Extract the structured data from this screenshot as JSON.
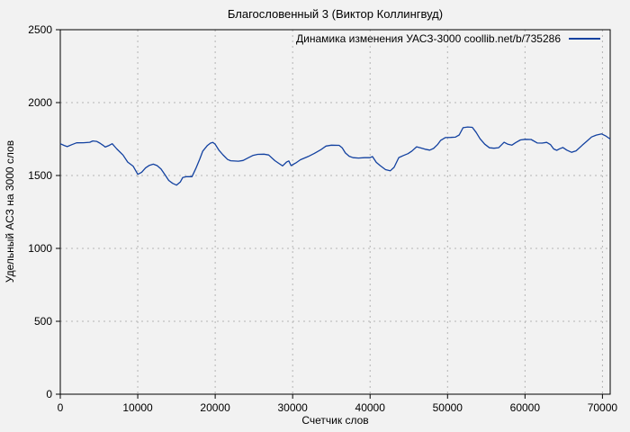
{
  "chart_data": {
    "type": "line",
    "title": "Благословенный 3 (Виктор Коллингвуд)",
    "xlabel": "Счетчик слов",
    "ylabel": "Удельный АСЗ на 3000 слов",
    "xlim": [
      0,
      71000
    ],
    "ylim": [
      0,
      2500
    ],
    "xticks": [
      0,
      10000,
      20000,
      30000,
      40000,
      50000,
      60000,
      70000
    ],
    "yticks": [
      0,
      500,
      1000,
      1500,
      2000,
      2500
    ],
    "grid": true,
    "legend_position": "top-right-inside",
    "colors": {
      "line": "#1241a0",
      "grid": "#b4b4b4",
      "axis": "#000000",
      "background": "#f2f2f2"
    },
    "series": [
      {
        "name": "Динамика изменения УАСЗ-3000 coollib.net/b/735286",
        "points": [
          [
            0,
            1718
          ],
          [
            500,
            1706
          ],
          [
            900,
            1698
          ],
          [
            1500,
            1712
          ],
          [
            2100,
            1724
          ],
          [
            3000,
            1725
          ],
          [
            3800,
            1728
          ],
          [
            4200,
            1737
          ],
          [
            4700,
            1734
          ],
          [
            5100,
            1722
          ],
          [
            5500,
            1708
          ],
          [
            5800,
            1695
          ],
          [
            6300,
            1706
          ],
          [
            6700,
            1718
          ],
          [
            7300,
            1682
          ],
          [
            8100,
            1640
          ],
          [
            8700,
            1592
          ],
          [
            9400,
            1564
          ],
          [
            10000,
            1508
          ],
          [
            10500,
            1522
          ],
          [
            11000,
            1552
          ],
          [
            11500,
            1570
          ],
          [
            12000,
            1578
          ],
          [
            12500,
            1568
          ],
          [
            13000,
            1545
          ],
          [
            13500,
            1506
          ],
          [
            14000,
            1466
          ],
          [
            14500,
            1446
          ],
          [
            15000,
            1434
          ],
          [
            15500,
            1456
          ],
          [
            15800,
            1486
          ],
          [
            16300,
            1492
          ],
          [
            17000,
            1492
          ],
          [
            17500,
            1548
          ],
          [
            18000,
            1612
          ],
          [
            18400,
            1667
          ],
          [
            19000,
            1706
          ],
          [
            19400,
            1722
          ],
          [
            19700,
            1727
          ],
          [
            20000,
            1714
          ],
          [
            20500,
            1672
          ],
          [
            21000,
            1642
          ],
          [
            21600,
            1610
          ],
          [
            22000,
            1601
          ],
          [
            23000,
            1598
          ],
          [
            23600,
            1603
          ],
          [
            24300,
            1622
          ],
          [
            24900,
            1638
          ],
          [
            25500,
            1645
          ],
          [
            26300,
            1646
          ],
          [
            26900,
            1641
          ],
          [
            27700,
            1602
          ],
          [
            28300,
            1580
          ],
          [
            28700,
            1566
          ],
          [
            29200,
            1592
          ],
          [
            29500,
            1600
          ],
          [
            29800,
            1568
          ],
          [
            30400,
            1586
          ],
          [
            31000,
            1608
          ],
          [
            32000,
            1630
          ],
          [
            32800,
            1652
          ],
          [
            33600,
            1675
          ],
          [
            34300,
            1702
          ],
          [
            35000,
            1708
          ],
          [
            36000,
            1707
          ],
          [
            36400,
            1690
          ],
          [
            36800,
            1655
          ],
          [
            37300,
            1632
          ],
          [
            37800,
            1622
          ],
          [
            38500,
            1620
          ],
          [
            39300,
            1622
          ],
          [
            40000,
            1622
          ],
          [
            40300,
            1630
          ],
          [
            40800,
            1590
          ],
          [
            41300,
            1568
          ],
          [
            42000,
            1540
          ],
          [
            42600,
            1532
          ],
          [
            43100,
            1556
          ],
          [
            43700,
            1623
          ],
          [
            44300,
            1637
          ],
          [
            44900,
            1650
          ],
          [
            45400,
            1668
          ],
          [
            46000,
            1697
          ],
          [
            46600,
            1688
          ],
          [
            47100,
            1680
          ],
          [
            47700,
            1674
          ],
          [
            48200,
            1686
          ],
          [
            48700,
            1712
          ],
          [
            49100,
            1740
          ],
          [
            49700,
            1760
          ],
          [
            50400,
            1761
          ],
          [
            51000,
            1763
          ],
          [
            51500,
            1778
          ],
          [
            52000,
            1828
          ],
          [
            52600,
            1833
          ],
          [
            53200,
            1830
          ],
          [
            53700,
            1795
          ],
          [
            54200,
            1752
          ],
          [
            54800,
            1715
          ],
          [
            55400,
            1690
          ],
          [
            56000,
            1687
          ],
          [
            56600,
            1691
          ],
          [
            57000,
            1712
          ],
          [
            57300,
            1728
          ],
          [
            57800,
            1714
          ],
          [
            58300,
            1708
          ],
          [
            58800,
            1726
          ],
          [
            59400,
            1744
          ],
          [
            60000,
            1748
          ],
          [
            60800,
            1747
          ],
          [
            61600,
            1723
          ],
          [
            62200,
            1722
          ],
          [
            62800,
            1727
          ],
          [
            63300,
            1712
          ],
          [
            63700,
            1682
          ],
          [
            64100,
            1673
          ],
          [
            64500,
            1684
          ],
          [
            64900,
            1692
          ],
          [
            65400,
            1674
          ],
          [
            66000,
            1659
          ],
          [
            66600,
            1669
          ],
          [
            67400,
            1708
          ],
          [
            68000,
            1736
          ],
          [
            68600,
            1764
          ],
          [
            69200,
            1777
          ],
          [
            69900,
            1785
          ],
          [
            70400,
            1772
          ],
          [
            71000,
            1750
          ]
        ]
      }
    ]
  }
}
